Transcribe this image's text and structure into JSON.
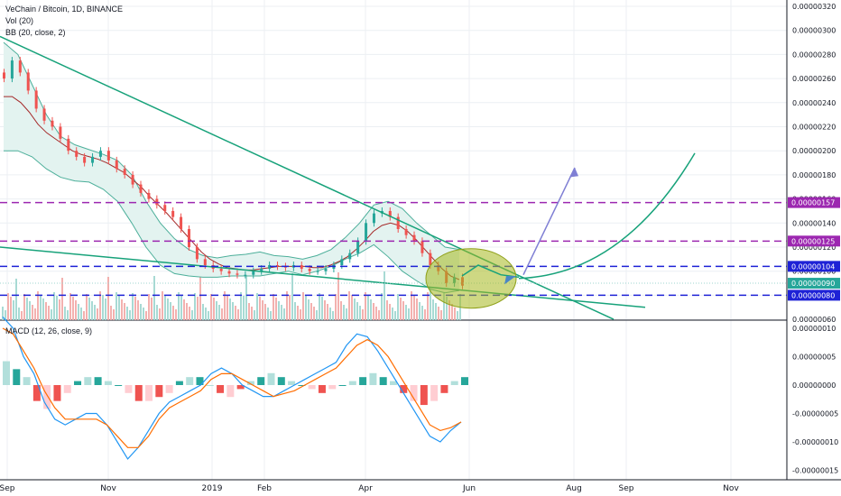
{
  "legend": {
    "title": "VeChain / Bitcoin, 1D, BINANCE",
    "vol": "Vol (20)",
    "bb": "BB (20, close, 2)",
    "macd": "MACD (12, 26, close, 9)"
  },
  "chart_data": [
    {
      "type": "line",
      "title": "VeChain / Bitcoin, 1D, BINANCE",
      "y_ticks": [
        "0.00000320",
        "0.00000300",
        "0.00000280",
        "0.00000260",
        "0.00000240",
        "0.00000220",
        "0.00000200",
        "0.00000180",
        "0.00000160",
        "0.00000140",
        "0.00000120",
        "0.00000100",
        "0.00000080",
        "0.00000060"
      ],
      "ylim": [
        6e-07,
        3.2e-06
      ],
      "x_ticks": [
        "Sep",
        "Nov",
        "2019",
        "Feb",
        "Apr",
        "Jun",
        "Aug",
        "Sep",
        "Nov"
      ],
      "series": [
        {
          "values": [
            2.6,
            2.75,
            2.65,
            2.5,
            2.35,
            2.25,
            2.2,
            2.1,
            2.0,
            1.95,
            1.9,
            1.95,
            2.0,
            1.92,
            1.85,
            1.8,
            1.72,
            1.65,
            1.6,
            1.55,
            1.5,
            1.45,
            1.35,
            1.2,
            1.1,
            1.05,
            1.02,
            1.0,
            0.98,
            0.97,
            0.97,
            1.0,
            1.02,
            1.05,
            1.04,
            1.03,
            1.05,
            1.02,
            1.0,
            1.0,
            1.02,
            1.05,
            1.1,
            1.15,
            1.25,
            1.4,
            1.48,
            1.5,
            1.45,
            1.35,
            1.3,
            1.25,
            1.15,
            1.05,
            1.0,
            0.9,
            0.95,
            0.88
          ]
        },
        {
          "values": [
            2.45,
            2.45,
            2.4,
            2.32,
            2.22,
            2.15,
            2.1,
            2.05,
            2.0,
            1.97,
            1.95,
            1.93,
            1.9,
            1.86,
            1.82,
            1.76,
            1.7,
            1.62,
            1.55,
            1.48,
            1.4,
            1.32,
            1.24,
            1.16,
            1.1,
            1.06,
            1.03,
            1.02,
            1.01,
            1.01,
            1.02,
            1.03,
            1.04,
            1.04,
            1.04,
            1.04,
            1.03,
            1.03,
            1.05,
            1.08,
            1.12,
            1.18,
            1.25,
            1.33,
            1.38,
            1.4,
            1.38,
            1.33,
            1.26,
            1.18,
            1.1,
            1.02,
            0.96,
            0.93
          ]
        },
        {
          "values": [
            2.9,
            2.8,
            2.55,
            2.3,
            2.12,
            2.05,
            2.01,
            1.97,
            1.92,
            1.8,
            1.58,
            1.4,
            1.27,
            1.18,
            1.13,
            1.11,
            1.13,
            1.14,
            1.16,
            1.13,
            1.12,
            1.1,
            1.13,
            1.18,
            1.28,
            1.4,
            1.55,
            1.58,
            1.52,
            1.4,
            1.3,
            1.2,
            1.18
          ]
        },
        {
          "values": [
            2.0,
            2.0,
            1.95,
            1.85,
            1.78,
            1.75,
            1.74,
            1.68,
            1.58,
            1.4,
            1.2,
            1.05,
            0.98,
            0.96,
            0.95,
            0.95,
            0.96,
            0.96,
            0.96,
            0.98,
            1.0,
            0.97,
            1.0,
            1.04,
            1.1,
            1.15,
            1.22,
            1.12,
            1.0,
            0.92,
            0.85,
            0.82,
            0.84
          ]
        }
      ],
      "price_levels": [
        "0.00000157",
        "0.00000125",
        "0.00000104",
        "0.00000080"
      ],
      "current_price": "0.00000090",
      "colors": {
        "up": "#26a69a",
        "down": "#ef5350",
        "trendline": "#17a27a",
        "level_purple": "#9c27b0",
        "level_blue": "#1e22d6",
        "bb_band": "#4caf9a",
        "bb_basis": "#a52a2a",
        "arrow": "#7f7fd4",
        "ellipse": "#a6b81e",
        "price_tag": "#26a69a"
      }
    },
    {
      "type": "bar",
      "title": "MACD (12, 26, close, 9)",
      "y_ticks": [
        "0.00000010",
        "0.00000005",
        "0.00000000",
        "-0.00000005",
        "-0.00000010",
        "-0.00000015"
      ],
      "ylim": [
        -1.5e-07,
        1e-07
      ],
      "series": [
        {
          "name": "histogram",
          "values": [
            0.03,
            0.02,
            0.01,
            -0.02,
            -0.03,
            -0.02,
            -0.01,
            0.005,
            0.01,
            0.01,
            0.005,
            0.0,
            -0.01,
            -0.02,
            -0.02,
            -0.015,
            -0.01,
            0.005,
            0.01,
            0.01,
            0.0,
            -0.01,
            -0.015,
            -0.005,
            0.005,
            0.01,
            0.015,
            0.01,
            0.005,
            0.0,
            -0.005,
            -0.01,
            -0.005,
            0.0,
            0.005,
            0.01,
            0.015,
            0.01,
            0.005,
            -0.01,
            -0.02,
            -0.025,
            -0.02,
            -0.01,
            0.005,
            0.01
          ]
        },
        {
          "name": "macd",
          "values": [
            0.12,
            0.1,
            0.05,
            0.02,
            -0.03,
            -0.06,
            -0.07,
            -0.06,
            -0.05,
            -0.05,
            -0.07,
            -0.1,
            -0.13,
            -0.11,
            -0.08,
            -0.05,
            -0.03,
            -0.02,
            -0.01,
            0.0,
            0.02,
            0.03,
            0.02,
            0.0,
            -0.01,
            -0.02,
            -0.02,
            -0.01,
            0.0,
            0.01,
            0.02,
            0.03,
            0.04,
            0.07,
            0.09,
            0.085,
            0.06,
            0.03,
            0.0,
            -0.03,
            -0.06,
            -0.09,
            -0.1,
            -0.08,
            -0.065
          ]
        },
        {
          "name": "signal",
          "values": [
            0.1,
            0.09,
            0.06,
            0.03,
            -0.01,
            -0.04,
            -0.06,
            -0.06,
            -0.06,
            -0.06,
            -0.07,
            -0.09,
            -0.11,
            -0.11,
            -0.09,
            -0.06,
            -0.04,
            -0.03,
            -0.02,
            -0.01,
            0.01,
            0.02,
            0.02,
            0.01,
            0.0,
            -0.01,
            -0.02,
            -0.015,
            -0.01,
            0.0,
            0.01,
            0.02,
            0.03,
            0.05,
            0.07,
            0.08,
            0.07,
            0.05,
            0.02,
            -0.01,
            -0.04,
            -0.07,
            -0.08,
            -0.075,
            -0.065
          ]
        }
      ]
    }
  ]
}
